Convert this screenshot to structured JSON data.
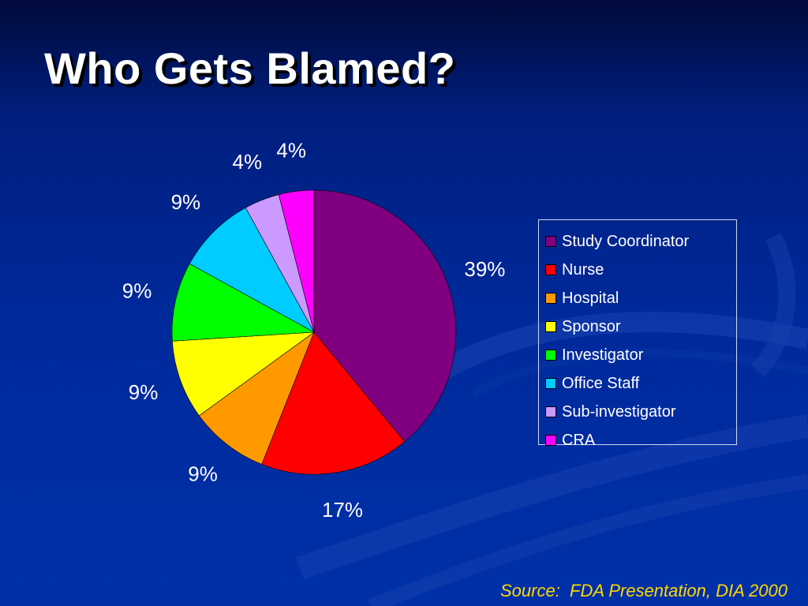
{
  "slide": {
    "title": "Who Gets Blamed?",
    "source": "Source:  FDA Presentation, DIA 2000"
  },
  "colors": {
    "background": "#002a9c",
    "title": "#ffffff",
    "source": "#ffd700"
  },
  "chart_data": {
    "type": "pie",
    "categories": [
      "Study Coordinator",
      "Nurse",
      "Hospital",
      "Sponsor",
      "Investigator",
      "Office Staff",
      "Sub-investigator",
      "CRA"
    ],
    "values": [
      39,
      17,
      9,
      9,
      9,
      9,
      4,
      4
    ],
    "labels": [
      "39%",
      "17%",
      "9%",
      "9%",
      "9%",
      "9%",
      "4%",
      "4%"
    ],
    "colors": [
      "#800080",
      "#ff0000",
      "#ff9900",
      "#ffff00",
      "#00ff00",
      "#00ccff",
      "#cc99ff",
      "#ff00ff"
    ],
    "start_angle": 0,
    "direction": "clockwise",
    "legend": {
      "placement": "right",
      "entries": [
        "Study Coordinator",
        "Nurse",
        "Hospital",
        "Sponsor",
        "Investigator",
        "Office Staff",
        "Sub-investigator",
        "CRA"
      ]
    }
  }
}
